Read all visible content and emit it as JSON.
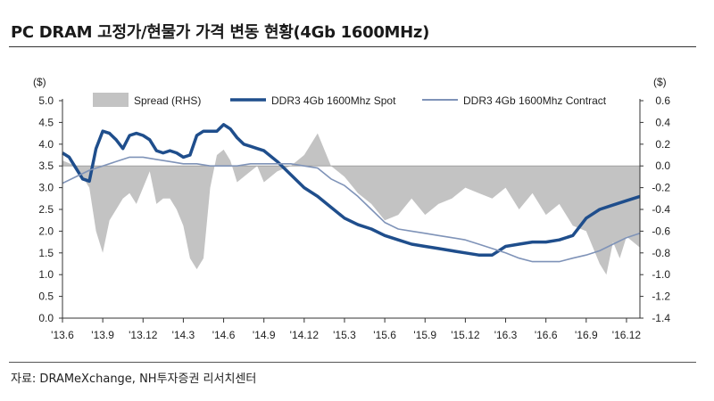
{
  "title": "PC DRAM 고정가/현물가 가격 변동 현황(4Gb 1600MHz)",
  "source": "자료: DRAMeXchange, NH투자증권 리서치센터",
  "colors": {
    "spot": "#1f4e8c",
    "contract": "#7f93b8",
    "spread": "#c3c3c3",
    "axis": "#333333"
  },
  "chart_data": {
    "type": "line",
    "title": "PC DRAM 고정가/현물가 가격 변동 현황(4Gb 1600MHz)",
    "left_axis": {
      "unit": "($)",
      "ylim": [
        0.0,
        5.0
      ],
      "ticks": [
        "5.0",
        "4.5",
        "4.0",
        "3.5",
        "3.0",
        "2.5",
        "2.0",
        "1.5",
        "1.0",
        "0.5",
        "0.0"
      ]
    },
    "right_axis": {
      "unit": "($)",
      "ylim": [
        -1.4,
        0.6
      ],
      "ticks": [
        "0.6",
        "0.4",
        "0.2",
        "0.0",
        "-0.2",
        "-0.4",
        "-0.6",
        "-0.8",
        "-1.0",
        "-1.2",
        "-1.4"
      ]
    },
    "x_ticks": [
      "'13.6",
      "'13.9",
      "'13.12",
      "'14.3",
      "'14.6",
      "'14.9",
      "'14.12",
      "'15.3",
      "'15.6",
      "'15.9",
      "'15.12",
      "'16.3",
      "'16.6",
      "'16.9",
      "'16.12"
    ],
    "x_range_months": [
      0,
      43
    ],
    "legend": [
      "Spread (RHS)",
      "DDR3 4Gb 1600Mhz Spot",
      "DDR3 4Gb 1600Mhz Contract"
    ],
    "legend_position": "top",
    "series": [
      {
        "name": "DDR3 4Gb 1600Mhz Spot",
        "kind": "line",
        "axis": "left",
        "x": [
          0,
          0.5,
          1,
          1.5,
          2,
          2.5,
          3,
          3.5,
          4,
          4.5,
          5,
          5.5,
          6,
          6.5,
          7,
          7.5,
          8,
          8.5,
          9,
          9.5,
          10,
          10.5,
          11,
          11.5,
          12,
          12.5,
          13,
          13.5,
          14,
          14.5,
          15,
          16,
          17,
          18,
          19,
          20,
          21,
          22,
          23,
          24,
          25,
          26,
          27,
          28,
          29,
          30,
          31,
          32,
          33,
          34,
          35,
          36,
          37,
          38,
          39,
          40,
          41,
          42,
          43
        ],
        "y": [
          3.8,
          3.7,
          3.45,
          3.2,
          3.15,
          3.9,
          4.3,
          4.25,
          4.1,
          3.9,
          4.2,
          4.25,
          4.2,
          4.1,
          3.85,
          3.8,
          3.85,
          3.8,
          3.7,
          3.75,
          4.2,
          4.3,
          4.3,
          4.3,
          4.45,
          4.35,
          4.15,
          4.0,
          3.95,
          3.9,
          3.85,
          3.6,
          3.3,
          3.0,
          2.8,
          2.55,
          2.3,
          2.15,
          2.05,
          1.9,
          1.8,
          1.7,
          1.65,
          1.6,
          1.55,
          1.5,
          1.45,
          1.45,
          1.65,
          1.7,
          1.75,
          1.75,
          1.8,
          1.9,
          2.3,
          2.5,
          2.6,
          2.7,
          2.8
        ]
      },
      {
        "name": "DDR3 4Gb 1600Mhz Contract",
        "kind": "line",
        "axis": "left",
        "x": [
          0,
          1,
          2,
          3,
          4,
          5,
          6,
          7,
          8,
          9,
          10,
          11,
          12,
          13,
          14,
          15,
          16,
          17,
          18,
          19,
          20,
          21,
          22,
          23,
          24,
          25,
          26,
          27,
          28,
          29,
          30,
          31,
          32,
          33,
          34,
          35,
          36,
          37,
          38,
          39,
          40,
          41,
          42,
          43
        ],
        "y": [
          3.1,
          3.25,
          3.4,
          3.5,
          3.6,
          3.7,
          3.7,
          3.65,
          3.6,
          3.55,
          3.55,
          3.5,
          3.5,
          3.5,
          3.55,
          3.55,
          3.55,
          3.55,
          3.5,
          3.45,
          3.2,
          3.05,
          2.8,
          2.5,
          2.2,
          2.05,
          2.0,
          1.95,
          1.9,
          1.85,
          1.8,
          1.7,
          1.6,
          1.5,
          1.38,
          1.3,
          1.3,
          1.3,
          1.38,
          1.45,
          1.55,
          1.7,
          1.85,
          1.95
        ]
      },
      {
        "name": "Spread (RHS)",
        "kind": "area",
        "axis": "right",
        "x": [
          0,
          1,
          2,
          2.5,
          3,
          3.5,
          4,
          4.5,
          5,
          5.5,
          6,
          6.5,
          7,
          7.5,
          8,
          8.5,
          9,
          9.5,
          10,
          10.5,
          11,
          11.5,
          12,
          12.5,
          13,
          13.5,
          14,
          14.5,
          15,
          16,
          17,
          18,
          19,
          20,
          21,
          22,
          23,
          24,
          25,
          26,
          27,
          28,
          29,
          30,
          31,
          32,
          33,
          34,
          35,
          36,
          37,
          38,
          39,
          40,
          40.5,
          41,
          41.5,
          42,
          43
        ],
        "y": [
          0.05,
          0.0,
          -0.2,
          -0.6,
          -0.8,
          -0.5,
          -0.4,
          -0.3,
          -0.25,
          -0.35,
          -0.2,
          -0.05,
          -0.35,
          -0.3,
          -0.3,
          -0.4,
          -0.55,
          -0.85,
          -0.95,
          -0.85,
          -0.2,
          0.1,
          0.15,
          0.05,
          -0.15,
          -0.1,
          -0.05,
          0.0,
          -0.15,
          -0.05,
          0.0,
          0.1,
          0.3,
          0.0,
          -0.1,
          -0.25,
          -0.35,
          -0.5,
          -0.45,
          -0.3,
          -0.45,
          -0.35,
          -0.3,
          -0.2,
          -0.25,
          -0.3,
          -0.2,
          -0.4,
          -0.25,
          -0.45,
          -0.35,
          -0.55,
          -0.6,
          -0.9,
          -1.0,
          -0.7,
          -0.85,
          -0.65,
          -0.75
        ]
      }
    ]
  }
}
